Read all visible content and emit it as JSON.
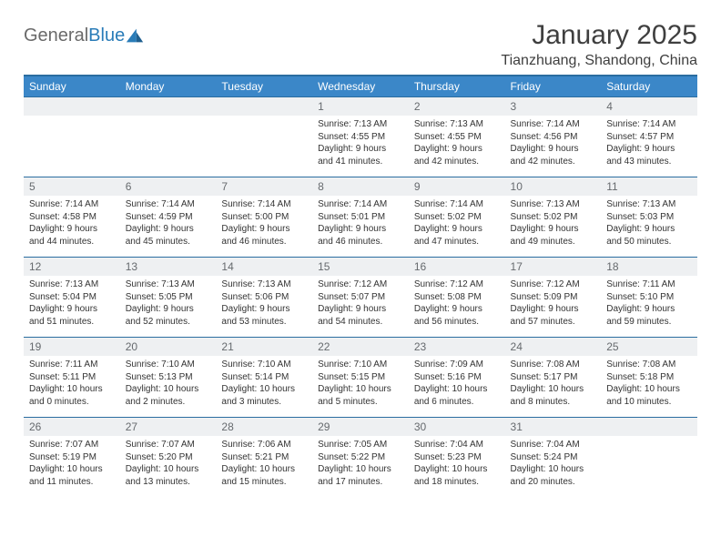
{
  "brand": {
    "name_gray": "General",
    "name_blue": "Blue"
  },
  "title": "January 2025",
  "location": "Tianzhuang, Shandong, China",
  "weekdays": [
    "Sunday",
    "Monday",
    "Tuesday",
    "Wednesday",
    "Thursday",
    "Friday",
    "Saturday"
  ],
  "colors": {
    "header_bg": "#3b87c8",
    "header_border": "#2a6da0",
    "daynum_bg": "#eef0f2",
    "daynum_text": "#666a6e",
    "body_text": "#333333"
  },
  "weeks": [
    [
      {
        "n": "",
        "l1": "",
        "l2": "",
        "l3": "",
        "l4": ""
      },
      {
        "n": "",
        "l1": "",
        "l2": "",
        "l3": "",
        "l4": ""
      },
      {
        "n": "",
        "l1": "",
        "l2": "",
        "l3": "",
        "l4": ""
      },
      {
        "n": "1",
        "l1": "Sunrise: 7:13 AM",
        "l2": "Sunset: 4:55 PM",
        "l3": "Daylight: 9 hours",
        "l4": "and 41 minutes."
      },
      {
        "n": "2",
        "l1": "Sunrise: 7:13 AM",
        "l2": "Sunset: 4:55 PM",
        "l3": "Daylight: 9 hours",
        "l4": "and 42 minutes."
      },
      {
        "n": "3",
        "l1": "Sunrise: 7:14 AM",
        "l2": "Sunset: 4:56 PM",
        "l3": "Daylight: 9 hours",
        "l4": "and 42 minutes."
      },
      {
        "n": "4",
        "l1": "Sunrise: 7:14 AM",
        "l2": "Sunset: 4:57 PM",
        "l3": "Daylight: 9 hours",
        "l4": "and 43 minutes."
      }
    ],
    [
      {
        "n": "5",
        "l1": "Sunrise: 7:14 AM",
        "l2": "Sunset: 4:58 PM",
        "l3": "Daylight: 9 hours",
        "l4": "and 44 minutes."
      },
      {
        "n": "6",
        "l1": "Sunrise: 7:14 AM",
        "l2": "Sunset: 4:59 PM",
        "l3": "Daylight: 9 hours",
        "l4": "and 45 minutes."
      },
      {
        "n": "7",
        "l1": "Sunrise: 7:14 AM",
        "l2": "Sunset: 5:00 PM",
        "l3": "Daylight: 9 hours",
        "l4": "and 46 minutes."
      },
      {
        "n": "8",
        "l1": "Sunrise: 7:14 AM",
        "l2": "Sunset: 5:01 PM",
        "l3": "Daylight: 9 hours",
        "l4": "and 46 minutes."
      },
      {
        "n": "9",
        "l1": "Sunrise: 7:14 AM",
        "l2": "Sunset: 5:02 PM",
        "l3": "Daylight: 9 hours",
        "l4": "and 47 minutes."
      },
      {
        "n": "10",
        "l1": "Sunrise: 7:13 AM",
        "l2": "Sunset: 5:02 PM",
        "l3": "Daylight: 9 hours",
        "l4": "and 49 minutes."
      },
      {
        "n": "11",
        "l1": "Sunrise: 7:13 AM",
        "l2": "Sunset: 5:03 PM",
        "l3": "Daylight: 9 hours",
        "l4": "and 50 minutes."
      }
    ],
    [
      {
        "n": "12",
        "l1": "Sunrise: 7:13 AM",
        "l2": "Sunset: 5:04 PM",
        "l3": "Daylight: 9 hours",
        "l4": "and 51 minutes."
      },
      {
        "n": "13",
        "l1": "Sunrise: 7:13 AM",
        "l2": "Sunset: 5:05 PM",
        "l3": "Daylight: 9 hours",
        "l4": "and 52 minutes."
      },
      {
        "n": "14",
        "l1": "Sunrise: 7:13 AM",
        "l2": "Sunset: 5:06 PM",
        "l3": "Daylight: 9 hours",
        "l4": "and 53 minutes."
      },
      {
        "n": "15",
        "l1": "Sunrise: 7:12 AM",
        "l2": "Sunset: 5:07 PM",
        "l3": "Daylight: 9 hours",
        "l4": "and 54 minutes."
      },
      {
        "n": "16",
        "l1": "Sunrise: 7:12 AM",
        "l2": "Sunset: 5:08 PM",
        "l3": "Daylight: 9 hours",
        "l4": "and 56 minutes."
      },
      {
        "n": "17",
        "l1": "Sunrise: 7:12 AM",
        "l2": "Sunset: 5:09 PM",
        "l3": "Daylight: 9 hours",
        "l4": "and 57 minutes."
      },
      {
        "n": "18",
        "l1": "Sunrise: 7:11 AM",
        "l2": "Sunset: 5:10 PM",
        "l3": "Daylight: 9 hours",
        "l4": "and 59 minutes."
      }
    ],
    [
      {
        "n": "19",
        "l1": "Sunrise: 7:11 AM",
        "l2": "Sunset: 5:11 PM",
        "l3": "Daylight: 10 hours",
        "l4": "and 0 minutes."
      },
      {
        "n": "20",
        "l1": "Sunrise: 7:10 AM",
        "l2": "Sunset: 5:13 PM",
        "l3": "Daylight: 10 hours",
        "l4": "and 2 minutes."
      },
      {
        "n": "21",
        "l1": "Sunrise: 7:10 AM",
        "l2": "Sunset: 5:14 PM",
        "l3": "Daylight: 10 hours",
        "l4": "and 3 minutes."
      },
      {
        "n": "22",
        "l1": "Sunrise: 7:10 AM",
        "l2": "Sunset: 5:15 PM",
        "l3": "Daylight: 10 hours",
        "l4": "and 5 minutes."
      },
      {
        "n": "23",
        "l1": "Sunrise: 7:09 AM",
        "l2": "Sunset: 5:16 PM",
        "l3": "Daylight: 10 hours",
        "l4": "and 6 minutes."
      },
      {
        "n": "24",
        "l1": "Sunrise: 7:08 AM",
        "l2": "Sunset: 5:17 PM",
        "l3": "Daylight: 10 hours",
        "l4": "and 8 minutes."
      },
      {
        "n": "25",
        "l1": "Sunrise: 7:08 AM",
        "l2": "Sunset: 5:18 PM",
        "l3": "Daylight: 10 hours",
        "l4": "and 10 minutes."
      }
    ],
    [
      {
        "n": "26",
        "l1": "Sunrise: 7:07 AM",
        "l2": "Sunset: 5:19 PM",
        "l3": "Daylight: 10 hours",
        "l4": "and 11 minutes."
      },
      {
        "n": "27",
        "l1": "Sunrise: 7:07 AM",
        "l2": "Sunset: 5:20 PM",
        "l3": "Daylight: 10 hours",
        "l4": "and 13 minutes."
      },
      {
        "n": "28",
        "l1": "Sunrise: 7:06 AM",
        "l2": "Sunset: 5:21 PM",
        "l3": "Daylight: 10 hours",
        "l4": "and 15 minutes."
      },
      {
        "n": "29",
        "l1": "Sunrise: 7:05 AM",
        "l2": "Sunset: 5:22 PM",
        "l3": "Daylight: 10 hours",
        "l4": "and 17 minutes."
      },
      {
        "n": "30",
        "l1": "Sunrise: 7:04 AM",
        "l2": "Sunset: 5:23 PM",
        "l3": "Daylight: 10 hours",
        "l4": "and 18 minutes."
      },
      {
        "n": "31",
        "l1": "Sunrise: 7:04 AM",
        "l2": "Sunset: 5:24 PM",
        "l3": "Daylight: 10 hours",
        "l4": "and 20 minutes."
      },
      {
        "n": "",
        "l1": "",
        "l2": "",
        "l3": "",
        "l4": ""
      }
    ]
  ]
}
